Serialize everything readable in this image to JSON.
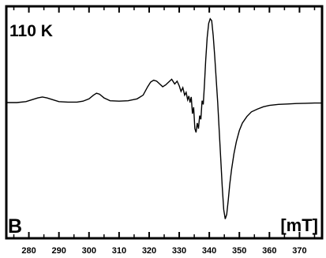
{
  "chart_data": {
    "type": "line",
    "temperature_label": "110 K",
    "panel_label": "B",
    "unit_label": "[mT]",
    "x_range": [
      272.5,
      377.5
    ],
    "x_ticks": [
      280,
      290,
      300,
      310,
      320,
      330,
      340,
      350,
      360,
      370
    ],
    "y_axis_ticks": false,
    "grid": false,
    "series": [
      {
        "x": [
          272.5,
          276,
          279,
          281,
          283,
          284.5,
          286,
          288,
          290,
          293,
          296,
          298,
          300,
          301.5,
          302.5,
          303.5,
          305,
          307,
          310,
          313,
          316,
          318,
          319.5,
          320.5,
          321.5,
          322.5,
          323.5,
          324.5,
          325.5,
          326.5,
          327.5,
          328.5,
          329.3,
          330,
          330.6,
          331.2,
          331.8,
          332.3,
          332.8,
          333.2,
          333.6,
          334,
          334.4,
          334.8,
          335.2,
          335.6,
          336,
          336.4,
          336.8,
          337.2,
          337.6,
          338,
          338.4,
          338.8,
          339.3,
          339.8,
          340.3,
          340.8,
          341.3,
          341.8,
          342.3,
          342.8,
          343.3,
          343.8,
          344.3,
          344.8,
          345.3,
          345.8,
          346.3,
          346.8,
          347.4,
          348.2,
          349,
          350,
          351,
          352.5,
          354,
          356,
          358,
          360,
          363,
          366,
          369,
          372,
          375,
          377.5
        ],
        "y": [
          0.0,
          0.0,
          0.01,
          0.03,
          0.05,
          0.06,
          0.05,
          0.03,
          0.01,
          0.005,
          0.005,
          0.015,
          0.04,
          0.08,
          0.1,
          0.09,
          0.05,
          0.02,
          0.015,
          0.02,
          0.04,
          0.08,
          0.17,
          0.22,
          0.24,
          0.23,
          0.2,
          0.17,
          0.19,
          0.22,
          0.25,
          0.2,
          0.23,
          0.18,
          0.12,
          0.16,
          0.08,
          0.11,
          0.03,
          0.07,
          0.0,
          0.06,
          -0.12,
          -0.05,
          -0.28,
          -0.32,
          -0.22,
          -0.28,
          -0.14,
          -0.18,
          0.02,
          -0.02,
          0.2,
          0.45,
          0.7,
          0.85,
          0.9,
          0.88,
          0.72,
          0.5,
          0.25,
          0.0,
          -0.3,
          -0.6,
          -0.9,
          -1.15,
          -1.25,
          -1.2,
          -1.05,
          -0.88,
          -0.72,
          -0.55,
          -0.42,
          -0.3,
          -0.22,
          -0.15,
          -0.1,
          -0.07,
          -0.045,
          -0.03,
          -0.02,
          -0.015,
          -0.01,
          -0.008,
          -0.005,
          -0.005
        ]
      }
    ]
  }
}
